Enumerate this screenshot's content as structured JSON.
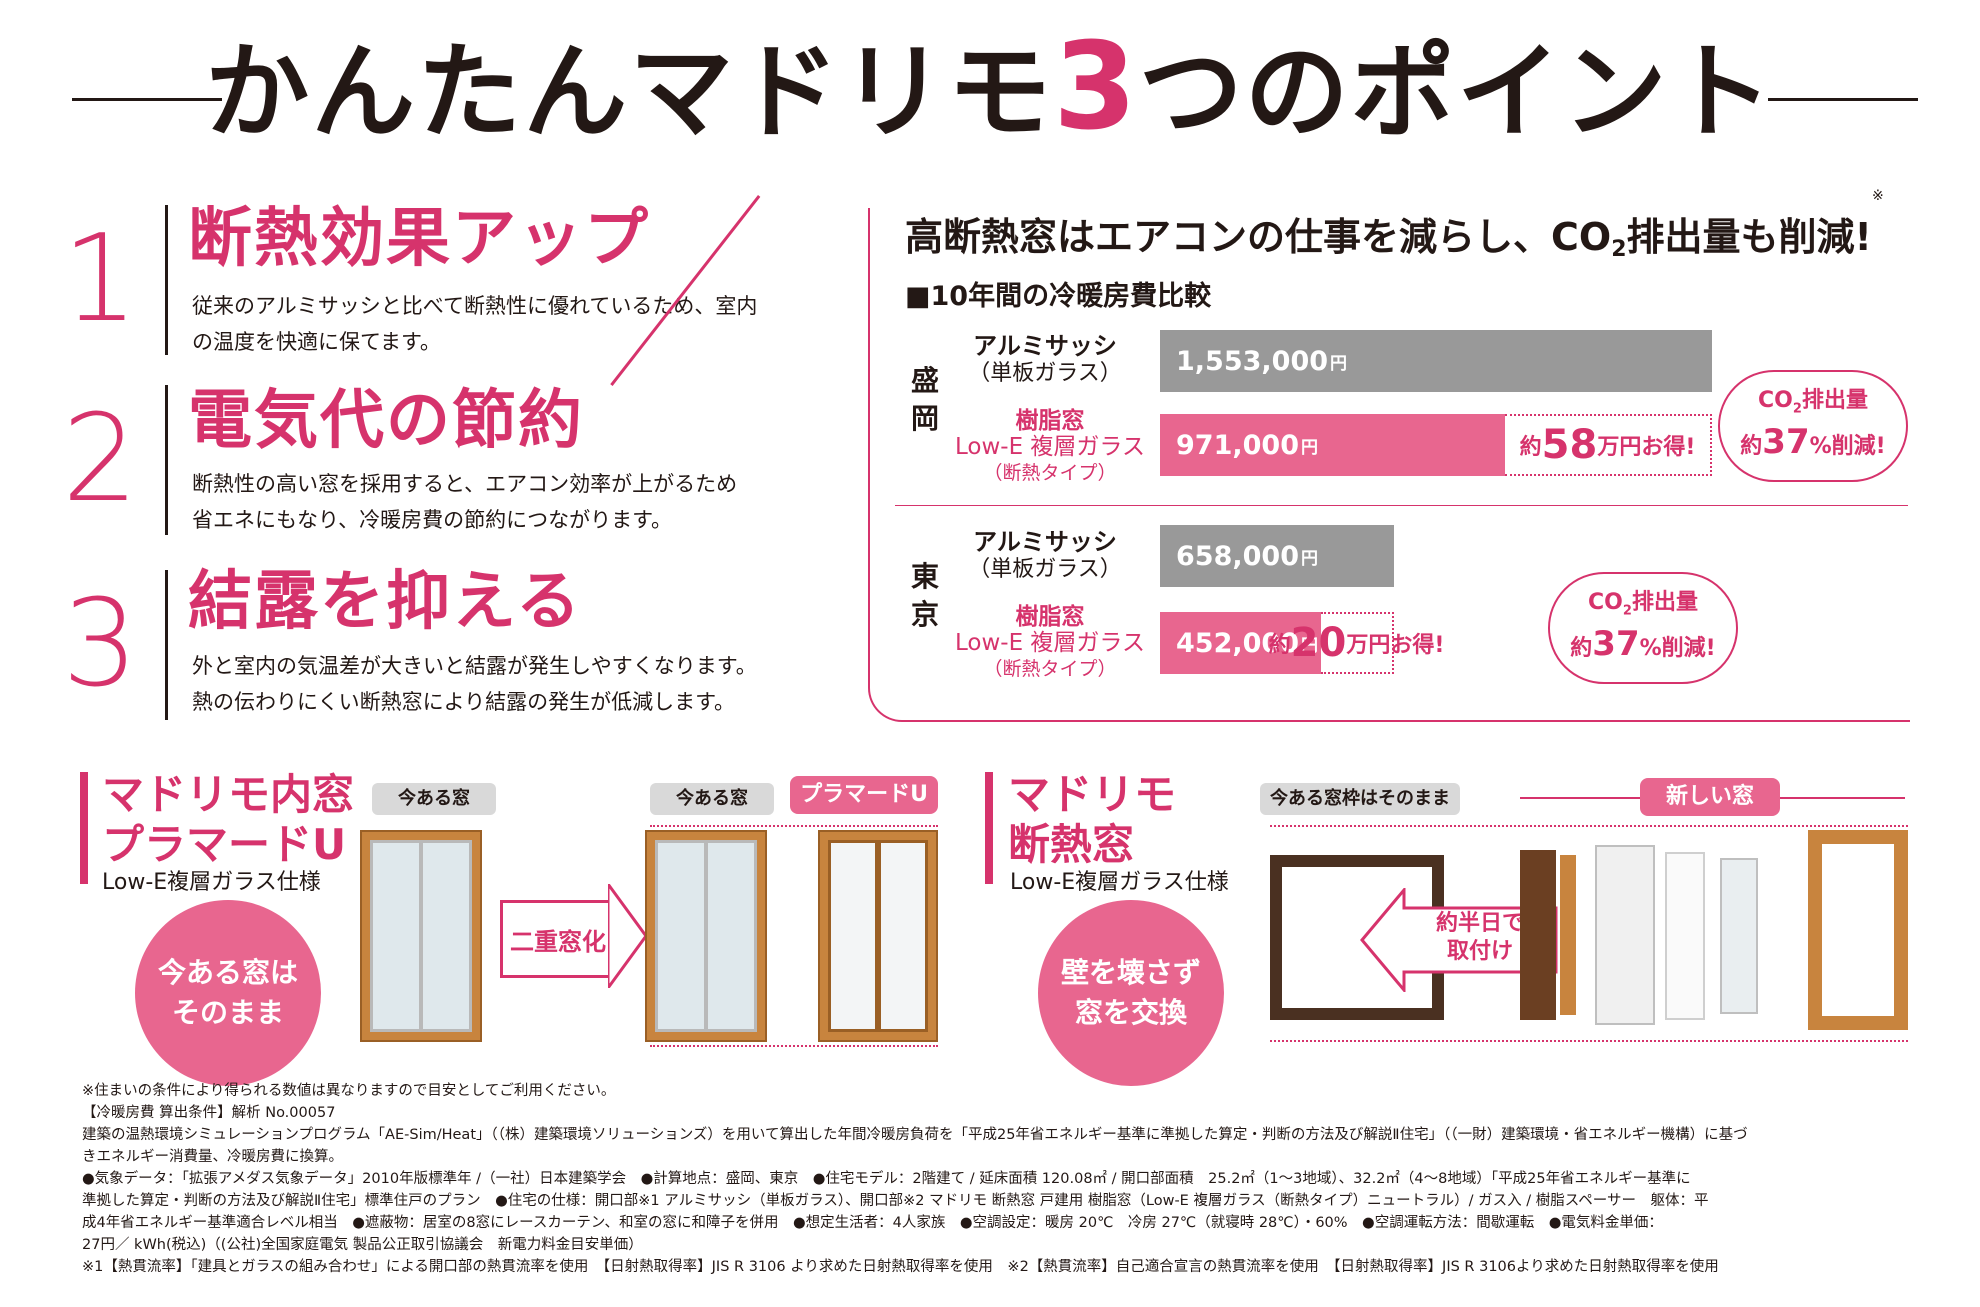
{
  "title": {
    "before": "かんたんマドリモ",
    "number": "3",
    "after": "つのポイント"
  },
  "points": [
    {
      "num": "1",
      "title": "断熱効果アップ",
      "desc": [
        "従来のアルミサッシと比べて断熱性に優れているため、室内",
        "の温度を快適に保てます。"
      ]
    },
    {
      "num": "2",
      "title": "電気代の節約",
      "desc": [
        "断熱性の高い窓を採用すると、エアコン効率が上がるため",
        "省エネにもなり、冷暖房費の節約につながります。"
      ]
    },
    {
      "num": "3",
      "title": "結露を抑える",
      "desc": [
        "外と室内の気温差が大きいと結露が発生しやすくなります。",
        "熱の伝わりにくい断熱窓により結露の発生が低減します。"
      ]
    }
  ],
  "panel": {
    "headline_a": "高断熱窓はエアコンの仕事を減らし、CO",
    "headline_sub": "2",
    "headline_b": "排出量も削減!",
    "headline_mark": "※",
    "chart_title": "■10年間の冷暖房費比較",
    "alu_label": "アルミサッシ",
    "alu_sub": "（単板ガラス）",
    "res_l1": "樹脂窓",
    "res_l2": "Low-E 複層ガラス",
    "res_l3": "（断熱タイプ）",
    "yen": "円",
    "co2_a": "CO",
    "co2_sub": "2",
    "co2_b": "排出量"
  },
  "chart_data": {
    "type": "bar",
    "title": "10年間の冷暖房費比較",
    "groups": [
      {
        "region": "盛岡",
        "aluminum": 1553000,
        "resin": 971000,
        "aluminum_label": "1,553,000",
        "resin_label": "971,000",
        "saving_pre": "約",
        "saving_num": "58",
        "saving_post": "万円お得!",
        "co2_pre": "約",
        "co2_num": "37",
        "co2_post": "%削減!"
      },
      {
        "region": "東京",
        "aluminum": 658000,
        "resin": 452000,
        "aluminum_label": "658,000",
        "resin_label": "452,000",
        "saving_pre": "約",
        "saving_num": "20",
        "saving_post": "万円お得!",
        "co2_pre": "約",
        "co2_num": "37",
        "co2_post": "%削減!"
      }
    ],
    "series": [
      {
        "name": "アルミサッシ（単板ガラス）"
      },
      {
        "name": "樹脂窓 Low-E 複層ガラス（断熱タイプ）"
      }
    ]
  },
  "inner": {
    "title_l1": "マドリモ内窓",
    "title_l2": "プラマードU",
    "sub": "Low-E複層ガラス仕様",
    "tag_existing": "今ある窓",
    "tag_existing2": "今ある窓",
    "tag_new": "プラマードU",
    "circle_l1": "今ある窓は",
    "circle_l2": "そのまま",
    "arrow": "二重窓化"
  },
  "insulated": {
    "title_l1": "マドリモ",
    "title_l2": "断熱窓",
    "sub": "Low-E複層ガラス仕様",
    "tag_frame": "今ある窓枠はそのまま",
    "tag_new": "新しい窓",
    "circle_l1": "壁を壊さず",
    "circle_l2": "窓を交換",
    "arrow_l1": "約半日で",
    "arrow_l2": "取付け"
  },
  "colors": {
    "accent": "#d6336c",
    "bar_pink": "#e8668f",
    "bar_gray": "#999999",
    "frame": "#c8843e"
  },
  "notes": [
    "※住まいの条件により得られる数値は異なりますので目安としてご利用ください。",
    "【冷暖房費 算出条件】解析 No.00057",
    "建築の温熱環境シミュレーションプログラム「AE-Sim/Heat」（（株）建築環境ソリューションズ）を用いて算出した年間冷暖房負荷を「平成25年省エネルギー基準に準拠した算定・判断の方法及び解説Ⅱ住宅」（（一財）建築環境・省エネルギー機構）に基づ",
    "きエネルギー消費量、冷暖房費に換算。",
    "●気象データ：「拡張アメダス気象データ」2010年版標準年 /（一社）日本建築学会　●計算地点：盛岡、東京　●住宅モデル：2階建て / 延床面積 120.08㎡ / 開口部面積　25.2㎡（1～3地域）、32.2㎡（4～8地域）「平成25年省エネルギー基準に",
    "準拠した算定・判断の方法及び解説Ⅱ住宅」標準住戸のプラン　●住宅の仕様：開口部※1 アルミサッシ（単板ガラス）、開口部※2 マドリモ 断熱窓 戸建用 樹脂窓（Low-E 複層ガラス（断熱タイプ）ニュートラル）/ ガス入 / 樹脂スペーサー　躯体：平",
    "成4年省エネルギー基準適合レベル相当　●遮蔽物：居室の8窓にレースカーテン、和室の窓に和障子を併用　●想定生活者：4人家族　●空調設定：暖房 20℃　冷房 27℃（就寝時 28℃）・60%　●空調運転方法：間歇運転　●電気料金単価：",
    "27円／ kWh(税込)（(公社)全国家庭電気 製品公正取引協議会　新電力料金目安単価）",
    "※1【熱貫流率】「建具とガラスの組み合わせ」による開口部の熱貫流率を使用　【日射熱取得率】JIS R 3106 より求めた日射熱取得率を使用　※2【熱貫流率】自己適合宣言の熱貫流率を使用　【日射熱取得率】JIS R 3106より求めた日射熱取得率を使用"
  ]
}
